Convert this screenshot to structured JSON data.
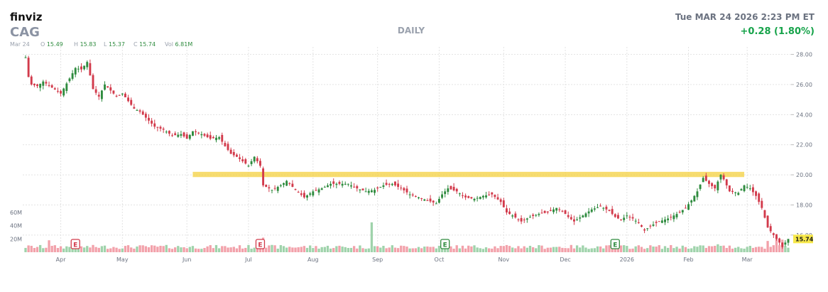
{
  "header": {
    "brand": "finviz",
    "ticker": "CAG",
    "timeframe": "DAILY",
    "datetime": "Tue MAR 24 2026 2:23 PM ET",
    "change": "+0.28 (1.80%)",
    "change_color": "#16a34a"
  },
  "ohlc": {
    "date": "Mar 24",
    "o_label": "O",
    "o": "15.49",
    "h_label": "H",
    "h": "15.83",
    "l_label": "L",
    "l": "15.37",
    "c_label": "C",
    "c": "15.74",
    "vol_label": "Vol",
    "vol": "6.81M"
  },
  "colors": {
    "up": "#2e8b3e",
    "down": "#d23a4b",
    "vol_up": "#9fd3ab",
    "vol_down": "#f2a1aa",
    "zone": "#f4d03f",
    "last_bg": "#f7e84a",
    "grid": "#e3e3e3"
  },
  "price_axis": {
    "ticks": [
      "28.00",
      "26.00",
      "24.00",
      "22.00",
      "20.00",
      "18.00",
      "16.00"
    ]
  },
  "volume_axis": {
    "ticks": [
      "60M",
      "40M",
      "20M"
    ]
  },
  "last_price_label": "15.74",
  "earnings_marker": "E",
  "chart_data": {
    "type": "candlestick",
    "title": "",
    "x_months": [
      "Apr",
      "May",
      "Jun",
      "Jul",
      "Aug",
      "Sep",
      "Oct",
      "Nov",
      "Dec",
      "2026",
      "Feb",
      "Mar"
    ],
    "ylim": [
      15.0,
      28.5
    ],
    "volume_ylim": [
      0,
      60
    ],
    "grid": true,
    "resistance_zone": {
      "low": 19.85,
      "high": 20.2,
      "from_index": 57,
      "to_index": 245
    },
    "earnings_indices": [
      17,
      80,
      143,
      201
    ],
    "earnings_colors": [
      "#d23a4b",
      "#d23a4b",
      "#2e8b3e",
      "#2e8b3e"
    ],
    "close_path": [
      [
        0,
        27.8
      ],
      [
        1,
        26.5
      ],
      [
        2,
        26.0
      ],
      [
        4,
        25.9
      ],
      [
        6,
        26.2
      ],
      [
        9,
        25.8
      ],
      [
        12,
        25.4
      ],
      [
        15,
        26.4
      ],
      [
        17,
        27.1
      ],
      [
        19,
        27.0
      ],
      [
        21,
        27.5
      ],
      [
        23,
        25.7
      ],
      [
        25,
        25.2
      ],
      [
        27,
        26.0
      ],
      [
        29,
        25.6
      ],
      [
        31,
        25.2
      ],
      [
        33,
        25.4
      ],
      [
        35,
        24.9
      ],
      [
        37,
        24.4
      ],
      [
        39,
        24.2
      ],
      [
        41,
        23.8
      ],
      [
        44,
        23.2
      ],
      [
        47,
        23.0
      ],
      [
        50,
        22.6
      ],
      [
        53,
        22.7
      ],
      [
        55,
        22.4
      ],
      [
        57,
        22.9
      ],
      [
        60,
        22.7
      ],
      [
        63,
        22.4
      ],
      [
        66,
        22.5
      ],
      [
        68,
        21.9
      ],
      [
        70,
        21.4
      ],
      [
        72,
        21.2
      ],
      [
        74,
        20.9
      ],
      [
        76,
        20.6
      ],
      [
        78,
        21.2
      ],
      [
        80,
        20.6
      ],
      [
        81,
        19.3
      ],
      [
        84,
        19.0
      ],
      [
        87,
        19.3
      ],
      [
        89,
        19.6
      ],
      [
        92,
        19.0
      ],
      [
        95,
        18.5
      ],
      [
        98,
        18.9
      ],
      [
        101,
        19.1
      ],
      [
        104,
        19.4
      ],
      [
        107,
        19.4
      ],
      [
        110,
        19.4
      ],
      [
        113,
        19.1
      ],
      [
        116,
        18.9
      ],
      [
        119,
        19.0
      ],
      [
        122,
        19.3
      ],
      [
        125,
        19.4
      ],
      [
        128,
        19.1
      ],
      [
        131,
        18.7
      ],
      [
        134,
        18.5
      ],
      [
        137,
        18.3
      ],
      [
        140,
        18.1
      ],
      [
        142,
        18.7
      ],
      [
        144,
        19.1
      ],
      [
        147,
        18.9
      ],
      [
        150,
        18.5
      ],
      [
        153,
        18.4
      ],
      [
        156,
        18.6
      ],
      [
        159,
        18.7
      ],
      [
        162,
        18.2
      ],
      [
        164,
        17.5
      ],
      [
        166,
        17.3
      ],
      [
        169,
        16.9
      ],
      [
        172,
        17.2
      ],
      [
        175,
        17.4
      ],
      [
        178,
        17.5
      ],
      [
        181,
        17.8
      ],
      [
        183,
        17.6
      ],
      [
        185,
        17.2
      ],
      [
        187,
        16.9
      ],
      [
        190,
        17.3
      ],
      [
        193,
        17.7
      ],
      [
        196,
        17.9
      ],
      [
        199,
        17.6
      ],
      [
        201,
        17.2
      ],
      [
        203,
        17.0
      ],
      [
        205,
        17.3
      ],
      [
        207,
        17.1
      ],
      [
        209,
        16.8
      ],
      [
        211,
        16.3
      ],
      [
        213,
        16.6
      ],
      [
        216,
        16.9
      ],
      [
        219,
        17.1
      ],
      [
        222,
        17.4
      ],
      [
        225,
        17.8
      ],
      [
        227,
        18.3
      ],
      [
        229,
        18.9
      ],
      [
        231,
        19.8
      ],
      [
        233,
        19.4
      ],
      [
        235,
        19.1
      ],
      [
        237,
        20.0
      ],
      [
        238,
        19.7
      ],
      [
        240,
        18.9
      ],
      [
        243,
        18.8
      ],
      [
        245,
        19.3
      ],
      [
        247,
        19.1
      ],
      [
        249,
        18.6
      ],
      [
        251,
        17.8
      ],
      [
        253,
        16.5
      ],
      [
        255,
        16.0
      ],
      [
        257,
        15.5
      ],
      [
        258,
        15.2
      ],
      [
        259,
        15.5
      ],
      [
        260,
        15.74
      ]
    ],
    "volume_spikes": {
      "8": 18,
      "81": 22,
      "118": 45,
      "170": 9,
      "236": 12,
      "253": 17,
      "256": 23,
      "258": 19
    },
    "last_candle": {
      "open": 15.49,
      "high": 15.83,
      "low": 15.37,
      "close": 15.74,
      "volume": 6.81
    }
  }
}
